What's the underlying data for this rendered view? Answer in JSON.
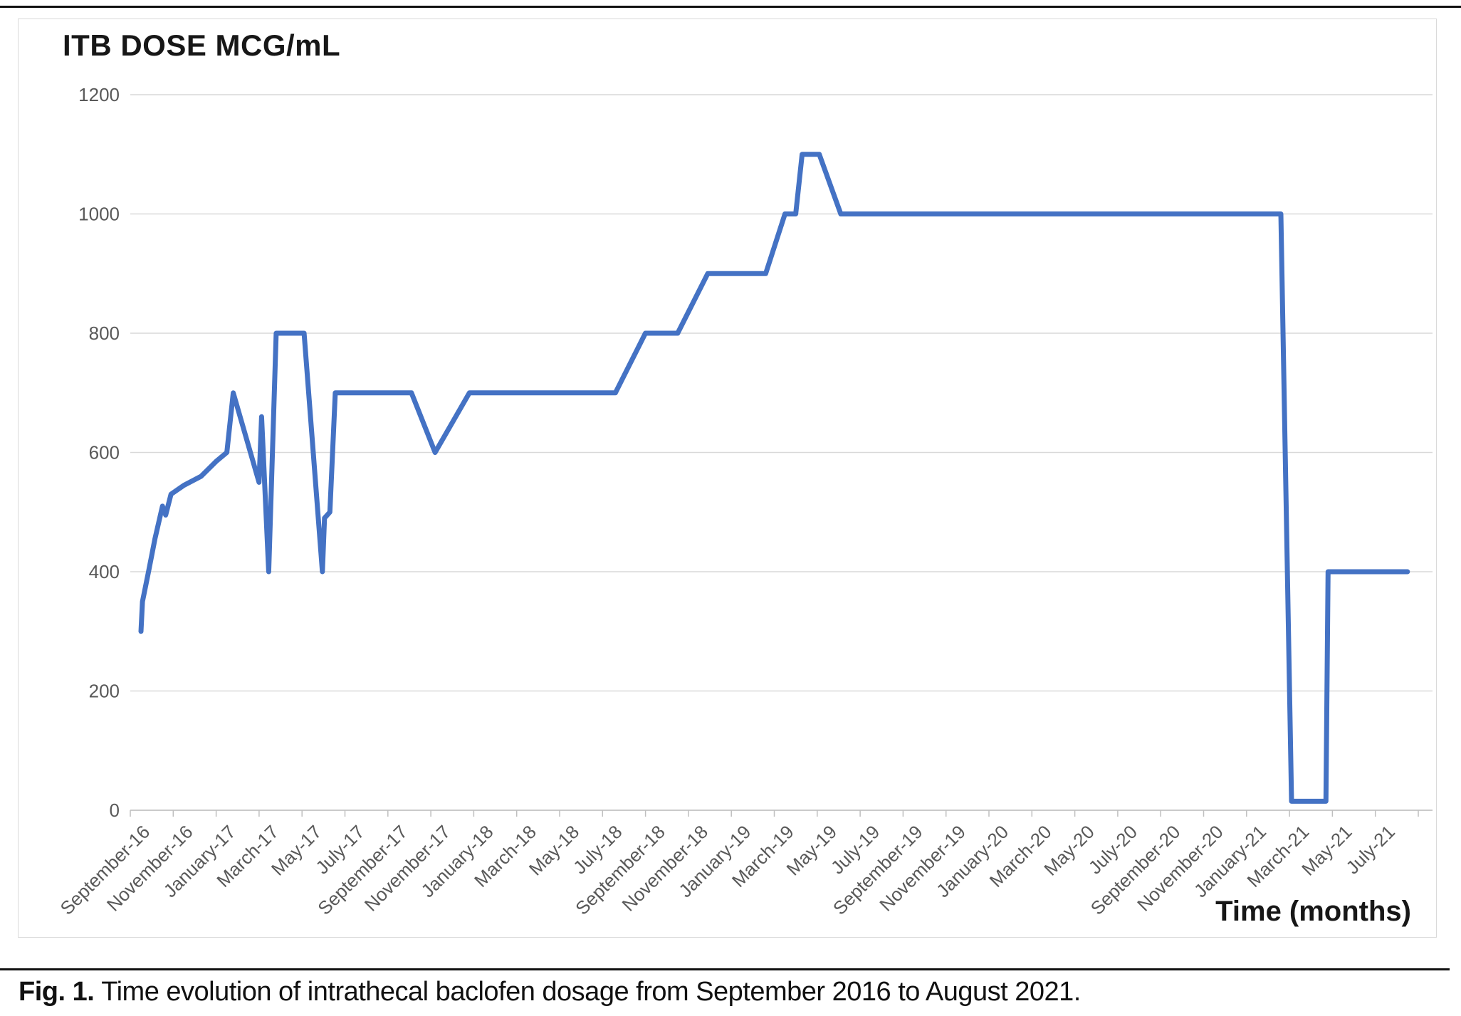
{
  "page": {
    "chart_title": "ITB DOSE MCG/mL",
    "x_axis_title": "Time (months)",
    "caption_label": "Fig. 1.",
    "caption_text": "Time evolution of intrathecal baclofen dosage from September 2016 to August 2021."
  },
  "chart_data": {
    "type": "line",
    "title": "ITB DOSE MCG/mL",
    "xlabel": "Time (months)",
    "ylabel": "ITB DOSE MCG/mL",
    "ylim": [
      0,
      1200
    ],
    "y_ticks": [
      0,
      200,
      400,
      600,
      800,
      1000,
      1200
    ],
    "grid": true,
    "legend_position": "none",
    "line_color": "#4472C4",
    "axis_text_color": "#595959",
    "gridline_color": "#d9d9d9",
    "axis_line_color": "#bfbfbf",
    "x_unit": "months since September 2016 (fractional = intra-month dose change)",
    "x_tick_labels": [
      "September-16",
      "November-16",
      "January-17",
      "March-17",
      "May-17",
      "July-17",
      "September-17",
      "November-17",
      "January-18",
      "March-18",
      "May-18",
      "July-18",
      "September-18",
      "November-18",
      "January-19",
      "March-19",
      "May-19",
      "July-19",
      "September-19",
      "November-19",
      "January-20",
      "March-20",
      "May-20",
      "July-20",
      "September-20",
      "November-20",
      "January-21",
      "March-21",
      "May-21",
      "July-21"
    ],
    "months_per_labeled_tick": 2,
    "points": [
      {
        "m": 0.0,
        "dose": 300
      },
      {
        "m": 0.07,
        "dose": 350
      },
      {
        "m": 0.35,
        "dose": 400
      },
      {
        "m": 0.65,
        "dose": 455
      },
      {
        "m": 1.0,
        "dose": 510
      },
      {
        "m": 1.15,
        "dose": 495
      },
      {
        "m": 1.4,
        "dose": 530
      },
      {
        "m": 2.0,
        "dose": 545
      },
      {
        "m": 2.8,
        "dose": 560
      },
      {
        "m": 3.5,
        "dose": 585
      },
      {
        "m": 4.0,
        "dose": 600
      },
      {
        "m": 4.3,
        "dose": 700
      },
      {
        "m": 5.5,
        "dose": 550
      },
      {
        "m": 5.62,
        "dose": 660
      },
      {
        "m": 5.95,
        "dose": 400
      },
      {
        "m": 6.3,
        "dose": 800
      },
      {
        "m": 7.6,
        "dose": 800
      },
      {
        "m": 8.45,
        "dose": 400
      },
      {
        "m": 8.55,
        "dose": 490
      },
      {
        "m": 8.8,
        "dose": 500
      },
      {
        "m": 9.05,
        "dose": 700
      },
      {
        "m": 12.6,
        "dose": 700
      },
      {
        "m": 13.7,
        "dose": 600
      },
      {
        "m": 15.3,
        "dose": 700
      },
      {
        "m": 22.1,
        "dose": 700
      },
      {
        "m": 23.5,
        "dose": 800
      },
      {
        "m": 25.0,
        "dose": 800
      },
      {
        "m": 26.4,
        "dose": 900
      },
      {
        "m": 29.1,
        "dose": 900
      },
      {
        "m": 30.0,
        "dose": 1000
      },
      {
        "m": 30.5,
        "dose": 1000
      },
      {
        "m": 30.8,
        "dose": 1100
      },
      {
        "m": 31.6,
        "dose": 1100
      },
      {
        "m": 32.6,
        "dose": 1000
      },
      {
        "m": 53.1,
        "dose": 1000
      },
      {
        "m": 53.6,
        "dose": 15
      },
      {
        "m": 55.2,
        "dose": 15
      },
      {
        "m": 55.3,
        "dose": 400
      },
      {
        "m": 59.0,
        "dose": 400
      }
    ]
  }
}
